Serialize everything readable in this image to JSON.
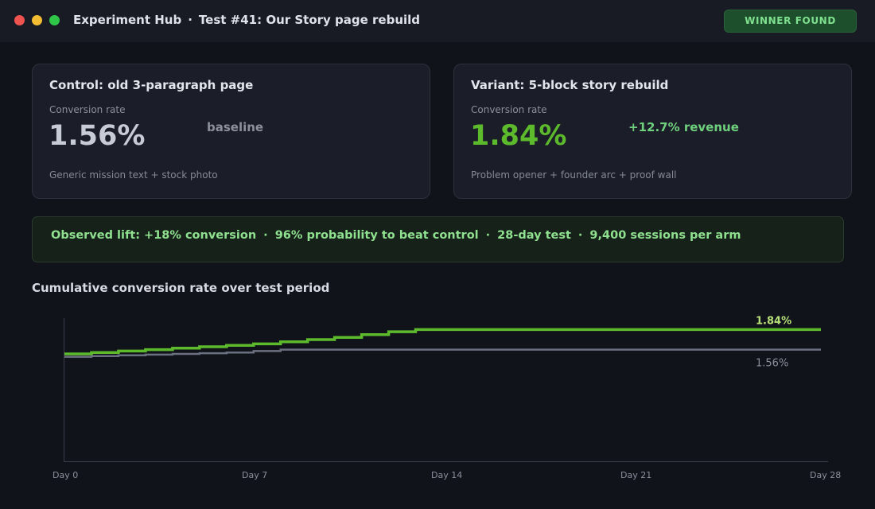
{
  "window": {
    "app_name": "Experiment Hub",
    "separator": "·",
    "test_name": "Test #41: Our Story page rebuild"
  },
  "status_badge": "WINNER FOUND",
  "colors": {
    "variant": "#5dba2d",
    "control": "#6b7080",
    "accent_green": "#6fd07d",
    "badge_bg": "#1e4f2c"
  },
  "control": {
    "title": "Control: old 3-paragraph page",
    "metric_label": "Conversion rate",
    "value": "1.56%",
    "comparison": "baseline",
    "description": "Generic mission text + stock photo"
  },
  "variant": {
    "title": "Variant: 5-block story rebuild",
    "metric_label": "Conversion rate",
    "value": "1.84%",
    "comparison": "+12.7% revenue",
    "description": "Problem opener + founder arc + proof wall"
  },
  "lift_summary": {
    "separator": "·",
    "items": [
      "Observed lift: +18% conversion",
      "96% probability to beat control",
      "28-day test",
      "9,400 sessions per arm"
    ]
  },
  "chart_title": "Cumulative conversion rate over test period",
  "chart_data": {
    "type": "line",
    "title": "Cumulative conversion rate over test period",
    "x_ticks": [
      "Day 0",
      "Day 7",
      "Day 14",
      "Day 21",
      "Day 28"
    ],
    "x_range": [
      0,
      28
    ],
    "y_range": [
      0,
      2.0
    ],
    "grid": false,
    "series": [
      {
        "key": "variant",
        "end_label": "1.84%",
        "points": [
          [
            0,
            1.5
          ],
          [
            1,
            1.52
          ],
          [
            2,
            1.54
          ],
          [
            3,
            1.56
          ],
          [
            4,
            1.58
          ],
          [
            5,
            1.6
          ],
          [
            6,
            1.62
          ],
          [
            7,
            1.64
          ],
          [
            8,
            1.67
          ],
          [
            9,
            1.7
          ],
          [
            10,
            1.73
          ],
          [
            11,
            1.77
          ],
          [
            12,
            1.81
          ],
          [
            13,
            1.84
          ],
          [
            14,
            1.84
          ],
          [
            21,
            1.84
          ],
          [
            28,
            1.84
          ]
        ]
      },
      {
        "key": "control",
        "end_label": "1.56%",
        "points": [
          [
            0,
            1.46
          ],
          [
            1,
            1.47
          ],
          [
            2,
            1.48
          ],
          [
            3,
            1.49
          ],
          [
            4,
            1.5
          ],
          [
            5,
            1.51
          ],
          [
            6,
            1.52
          ],
          [
            7,
            1.54
          ],
          [
            8,
            1.56
          ],
          [
            9,
            1.56
          ],
          [
            14,
            1.56
          ],
          [
            21,
            1.56
          ],
          [
            28,
            1.56
          ]
        ]
      }
    ]
  }
}
